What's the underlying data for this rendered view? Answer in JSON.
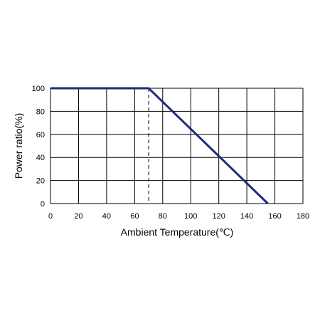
{
  "chart_data": {
    "type": "line",
    "xlabel": "Ambient Temperature(℃)",
    "ylabel": "Power ratio(%)",
    "xlim": [
      0,
      180
    ],
    "ylim": [
      0,
      100
    ],
    "xticks": [
      0,
      20,
      40,
      60,
      80,
      100,
      120,
      140,
      160,
      180
    ],
    "yticks": [
      0,
      20,
      40,
      60,
      80,
      100
    ],
    "x_tick_labels": [
      "0",
      "20",
      "40",
      "60",
      "80",
      "100",
      "120",
      "140",
      "160",
      "180"
    ],
    "y_tick_labels": [
      "0",
      "20",
      "40",
      "60",
      "80",
      "100"
    ],
    "grid": true,
    "series": [
      {
        "x": [
          0,
          70,
          155
        ],
        "y": [
          100,
          100,
          0
        ],
        "color": "#1f2a7a"
      }
    ],
    "reference_lines": [
      {
        "orientation": "vertical",
        "x": 70,
        "y_range": [
          0,
          100
        ],
        "style": "dashed",
        "color": "#000000"
      }
    ]
  }
}
